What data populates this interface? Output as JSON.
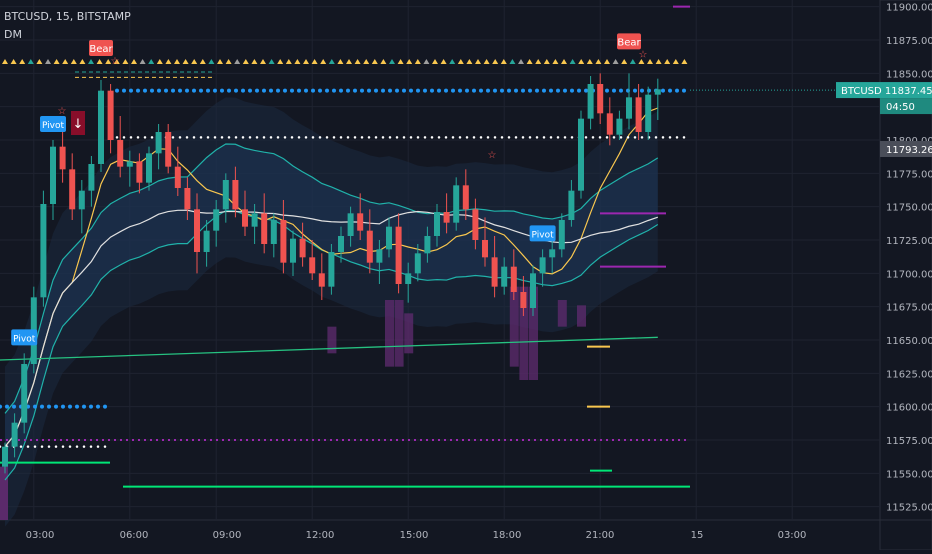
{
  "header": {
    "symbol": "BTCUSD, 15, BITSTAMP",
    "study": "DM"
  },
  "chart_data": {
    "type": "candlestick",
    "y_ticks": [
      "11900.00",
      "11875.00",
      "11850.00",
      "11825.00",
      "11800.00",
      "11775.00",
      "11750.00",
      "11725.00",
      "11700.00",
      "11675.00",
      "11650.00",
      "11625.00",
      "11600.00",
      "11575.00",
      "11550.00",
      "11525.00"
    ],
    "x_ticks": [
      "03:00",
      "06:00",
      "09:00",
      "12:00",
      "15:00",
      "18:00",
      "21:00",
      "15",
      "03:00"
    ],
    "ylim": [
      11515,
      11905
    ],
    "last_price": {
      "symbol": "BTCUSD",
      "value": "11837.45",
      "countdown": "04:50"
    },
    "crosshair_price": "11793.26",
    "labels": [
      {
        "text": "Bear",
        "kind": "bear",
        "index": 10
      },
      {
        "text": "Bear",
        "kind": "bear",
        "index": 65
      },
      {
        "text": "Pivot",
        "kind": "pivot",
        "index": 5
      },
      {
        "text": "Pivot",
        "kind": "pivot",
        "index": 2
      },
      {
        "text": "Pivot",
        "kind": "pivot",
        "index": 56
      }
    ],
    "candles": [
      [
        11555,
        11573,
        11550,
        11570
      ],
      [
        11570,
        11595,
        11562,
        11588
      ],
      [
        11588,
        11640,
        11580,
        11632
      ],
      [
        11632,
        11690,
        11625,
        11682
      ],
      [
        11682,
        11762,
        11675,
        11752
      ],
      [
        11752,
        11800,
        11740,
        11795
      ],
      [
        11795,
        11812,
        11768,
        11778
      ],
      [
        11778,
        11790,
        11740,
        11748
      ],
      [
        11748,
        11770,
        11730,
        11762
      ],
      [
        11762,
        11788,
        11750,
        11782
      ],
      [
        11782,
        11845,
        11776,
        11837
      ],
      [
        11837,
        11842,
        11790,
        11800
      ],
      [
        11800,
        11818,
        11772,
        11780
      ],
      [
        11780,
        11792,
        11765,
        11784
      ],
      [
        11784,
        11790,
        11760,
        11768
      ],
      [
        11768,
        11795,
        11762,
        11790
      ],
      [
        11790,
        11812,
        11778,
        11806
      ],
      [
        11806,
        11812,
        11775,
        11780
      ],
      [
        11780,
        11795,
        11758,
        11764
      ],
      [
        11764,
        11772,
        11740,
        11748
      ],
      [
        11748,
        11760,
        11700,
        11716
      ],
      [
        11716,
        11740,
        11705,
        11732
      ],
      [
        11732,
        11755,
        11720,
        11748
      ],
      [
        11748,
        11775,
        11738,
        11770
      ],
      [
        11770,
        11780,
        11742,
        11748
      ],
      [
        11748,
        11762,
        11728,
        11735
      ],
      [
        11735,
        11752,
        11722,
        11745
      ],
      [
        11745,
        11760,
        11715,
        11722
      ],
      [
        11722,
        11745,
        11712,
        11740
      ],
      [
        11740,
        11755,
        11700,
        11708
      ],
      [
        11708,
        11732,
        11698,
        11726
      ],
      [
        11726,
        11738,
        11705,
        11712
      ],
      [
        11712,
        11725,
        11695,
        11700
      ],
      [
        11700,
        11715,
        11680,
        11690
      ],
      [
        11690,
        11722,
        11684,
        11716
      ],
      [
        11716,
        11735,
        11708,
        11728
      ],
      [
        11728,
        11750,
        11720,
        11745
      ],
      [
        11745,
        11760,
        11725,
        11732
      ],
      [
        11732,
        11748,
        11700,
        11708
      ],
      [
        11708,
        11725,
        11692,
        11718
      ],
      [
        11718,
        11742,
        11712,
        11735
      ],
      [
        11735,
        11745,
        11685,
        11692
      ],
      [
        11692,
        11708,
        11678,
        11700
      ],
      [
        11700,
        11722,
        11694,
        11715
      ],
      [
        11715,
        11735,
        11708,
        11728
      ],
      [
        11728,
        11752,
        11720,
        11746
      ],
      [
        11746,
        11760,
        11730,
        11738
      ],
      [
        11738,
        11772,
        11732,
        11766
      ],
      [
        11766,
        11778,
        11740,
        11748
      ],
      [
        11748,
        11756,
        11718,
        11725
      ],
      [
        11725,
        11742,
        11705,
        11712
      ],
      [
        11712,
        11728,
        11682,
        11690
      ],
      [
        11690,
        11712,
        11684,
        11705
      ],
      [
        11705,
        11718,
        11680,
        11686
      ],
      [
        11686,
        11698,
        11668,
        11674
      ],
      [
        11674,
        11706,
        11668,
        11700
      ],
      [
        11700,
        11718,
        11690,
        11712
      ],
      [
        11712,
        11726,
        11700,
        11718
      ],
      [
        11718,
        11745,
        11712,
        11740
      ],
      [
        11740,
        11770,
        11735,
        11762
      ],
      [
        11762,
        11822,
        11756,
        11816
      ],
      [
        11816,
        11848,
        11808,
        11842
      ],
      [
        11842,
        11850,
        11812,
        11820
      ],
      [
        11820,
        11832,
        11796,
        11804
      ],
      [
        11804,
        11822,
        11800,
        11816
      ],
      [
        11816,
        11850,
        11808,
        11832
      ],
      [
        11832,
        11842,
        11800,
        11806
      ],
      [
        11806,
        11840,
        11800,
        11834
      ],
      [
        11834,
        11846,
        11815,
        11838
      ]
    ]
  },
  "colors": {
    "background": "#131722",
    "up": "#26a69a",
    "down": "#ef5350",
    "cloud": "#1e3a5f",
    "blue_dots": "#2196f3",
    "white_dots": "#ffffff",
    "purple": "#9c27b0",
    "green": "#00e676",
    "gold": "#f9c74f",
    "teal": "#20b2aa",
    "grid": "#1f2330",
    "axis_text": "#b2b5be"
  }
}
